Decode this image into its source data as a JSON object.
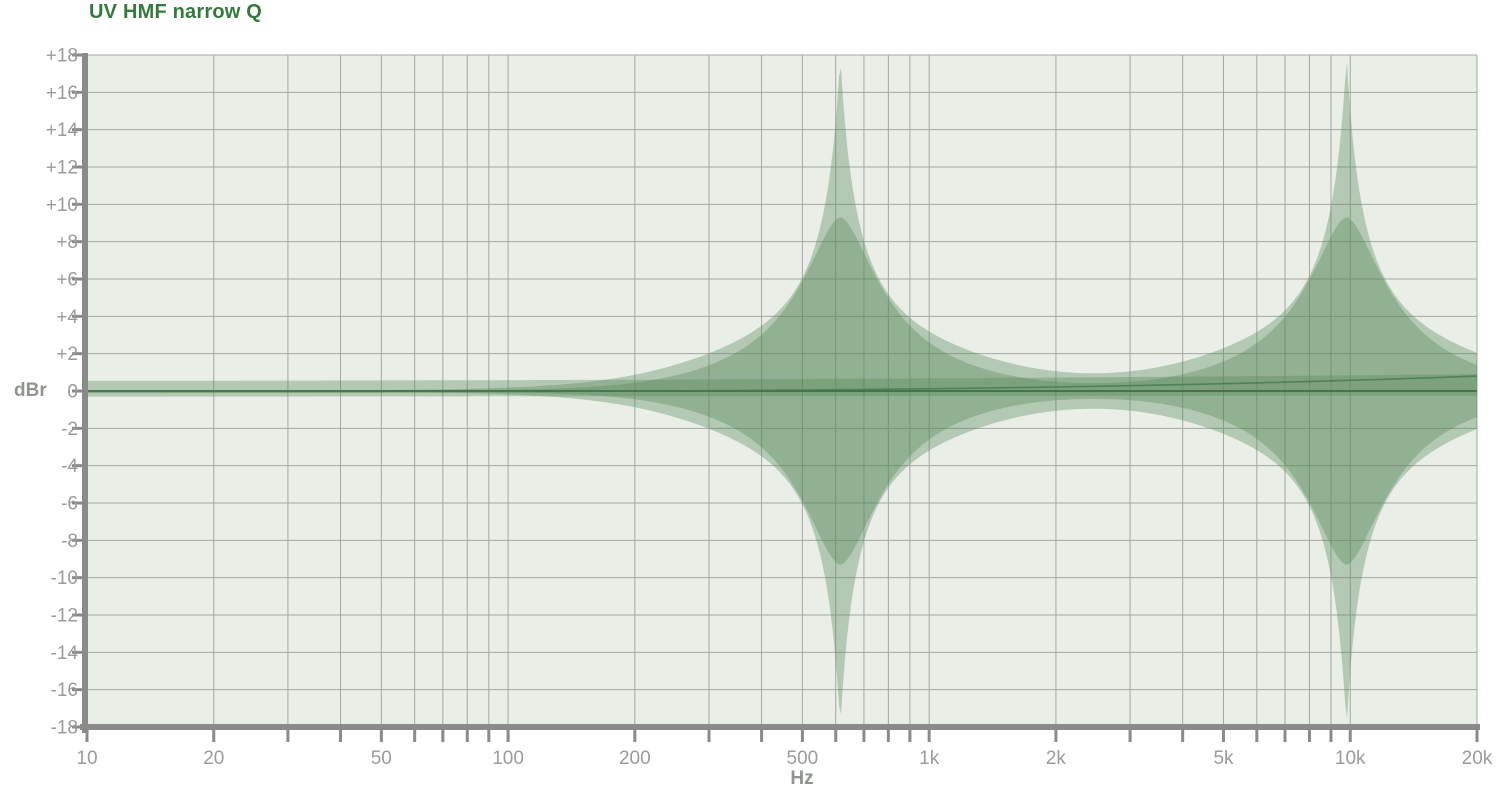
{
  "chart_data": {
    "type": "area",
    "title": "UV HMF narrow Q",
    "xlabel": "Hz",
    "ylabel": "dBr",
    "x_scale": "log",
    "x_range_hz": [
      10,
      20000
    ],
    "y_range_db": [
      -18,
      18
    ],
    "y_tick_step_db": 2,
    "grid": true,
    "y_tick_labels": [
      "+18",
      "+16",
      "+14",
      "+12",
      "+10",
      "+8",
      "+6",
      "+4",
      "+2",
      "0",
      "-2",
      "-4",
      "-6",
      "-8",
      "-10",
      "-12",
      "-14",
      "-16",
      "-18"
    ],
    "x_major_ticks": [
      {
        "hz": 10,
        "label": "10"
      },
      {
        "hz": 20,
        "label": "20"
      },
      {
        "hz": 50,
        "label": "50"
      },
      {
        "hz": 100,
        "label": "100"
      },
      {
        "hz": 200,
        "label": "200"
      },
      {
        "hz": 500,
        "label": "500"
      },
      {
        "hz": 1000,
        "label": "1k"
      },
      {
        "hz": 2000,
        "label": "2k"
      },
      {
        "hz": 5000,
        "label": "5k"
      },
      {
        "hz": 10000,
        "label": "10k"
      },
      {
        "hz": 20000,
        "label": "20k"
      }
    ],
    "x_minor_ticks_hz": [
      10,
      20,
      30,
      40,
      50,
      60,
      70,
      80,
      90,
      100,
      200,
      300,
      400,
      500,
      600,
      700,
      800,
      900,
      1000,
      2000,
      3000,
      4000,
      5000,
      6000,
      7000,
      8000,
      9000,
      10000,
      20000
    ],
    "series": [
      {
        "name": "outer-envelope-max-boost-cut",
        "description": "narrow-Q bell at maximum boost/cut, mirrored about 0 dBr",
        "gain_db": 18,
        "centers_hz": [
          615,
          9800
        ],
        "width_dec": 0.045,
        "shape_p": 0.98,
        "tail_width_dec": 0.5,
        "tail_p": 3.5,
        "mirrored": true
      },
      {
        "name": "inner-envelope-mid-boost-cut",
        "description": "wider bell at lower boost/cut, mirrored about 0 dBr",
        "gain_db": 9.3,
        "centers_hz": [
          615,
          9800
        ],
        "width_dec": 0.124,
        "shape_p": 1.71,
        "tail_width_dec": 0.5,
        "tail_p": 3.5,
        "mirrored": true
      }
    ],
    "baseline_band": {
      "description": "thin residual response band hugging 0 dBr across full bandwidth",
      "high_db_at_left": 0.55,
      "high_db_at_right": 0.9,
      "low_db_at_left": -0.3,
      "low_db_at_right": -0.25
    },
    "zero_line_db": 0,
    "rising_line": {
      "start_db": -0.04,
      "end_db": 0.8,
      "curve_pow": 3.3
    },
    "legend": "none",
    "colors": {
      "title": "#35793f",
      "plot_bg": "#e9efe7",
      "grid": "#a2a7a1",
      "fill": "#57875a",
      "fill_alpha": 0.37,
      "zero_line": "#3e6b44",
      "rising_line": "#4a7a4e",
      "axis": "#8a8a8a",
      "tick_labels": "#9b9b9b",
      "unit_labels": "#8f948f"
    }
  }
}
